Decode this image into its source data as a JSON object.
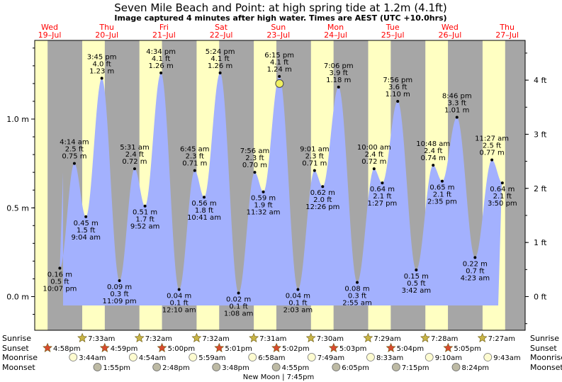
{
  "chart_data": {
    "type": "area",
    "title": "Seven Mile Beach and Point: at high  spring tide at 1.2m (4.1ft)",
    "subtitle": "Image captured 4 minutes after high water. Times are AEST (UTC +10.0hrs)",
    "days": [
      {
        "dow": "Wed",
        "date": "19–Jul"
      },
      {
        "dow": "Thu",
        "date": "20–Jul"
      },
      {
        "dow": "Fri",
        "date": "21–Jul"
      },
      {
        "dow": "Sat",
        "date": "22–Jul"
      },
      {
        "dow": "Sun",
        "date": "23–Jul"
      },
      {
        "dow": "Mon",
        "date": "24–Jul"
      },
      {
        "dow": "Tue",
        "date": "25–Jul"
      },
      {
        "dow": "Wed",
        "date": "26–Jul"
      },
      {
        "dow": "Thu",
        "date": "27–Jul"
      }
    ],
    "y_axis_left": {
      "unit": "m",
      "ticks": [
        "0.0 m",
        "0.5 m",
        "1.0 m"
      ],
      "tick_values": [
        0,
        0.5,
        1.0
      ],
      "ylim": [
        -0.15,
        1.45
      ]
    },
    "y_axis_right": {
      "unit": "ft",
      "ticks": [
        "0 ft",
        "1 ft",
        "2 ft",
        "3 ft",
        "4 ft"
      ],
      "tick_values": [
        0,
        1,
        2,
        3,
        4
      ]
    },
    "extremes": [
      {
        "day": 0,
        "time": "10:07 pm",
        "hour": 22.12,
        "m": 0.16,
        "m_label": "0.16 m",
        "ft_label": "0.5 ft",
        "kind": "low"
      },
      {
        "day": 1,
        "time": "4:14 am",
        "hour": 4.23,
        "m": 0.75,
        "m_label": "0.75 m",
        "ft_label": "2.5 ft",
        "kind": "high"
      },
      {
        "day": 1,
        "time": "9:04 am",
        "hour": 9.07,
        "m": 0.45,
        "m_label": "0.45 m",
        "ft_label": "1.5 ft",
        "kind": "low"
      },
      {
        "day": 1,
        "time": "3:45 pm",
        "hour": 15.75,
        "m": 1.23,
        "m_label": "1.23 m",
        "ft_label": "4.0 ft",
        "kind": "high"
      },
      {
        "day": 1,
        "time": "11:09 pm",
        "hour": 23.15,
        "m": 0.09,
        "m_label": "0.09 m",
        "ft_label": "0.3 ft",
        "kind": "low"
      },
      {
        "day": 2,
        "time": "5:31 am",
        "hour": 5.52,
        "m": 0.72,
        "m_label": "0.72 m",
        "ft_label": "2.4 ft",
        "kind": "high"
      },
      {
        "day": 2,
        "time": "9:52 am",
        "hour": 9.87,
        "m": 0.51,
        "m_label": "0.51 m",
        "ft_label": "1.7 ft",
        "kind": "low"
      },
      {
        "day": 2,
        "time": "4:34 pm",
        "hour": 16.57,
        "m": 1.26,
        "m_label": "1.26 m",
        "ft_label": "4.1 ft",
        "kind": "high"
      },
      {
        "day": 3,
        "time": "12:10 am",
        "hour": 0.17,
        "m": 0.04,
        "m_label": "0.04 m",
        "ft_label": "0.1 ft",
        "kind": "low"
      },
      {
        "day": 3,
        "time": "6:45 am",
        "hour": 6.75,
        "m": 0.71,
        "m_label": "0.71 m",
        "ft_label": "2.3 ft",
        "kind": "high"
      },
      {
        "day": 3,
        "time": "10:41 am",
        "hour": 10.68,
        "m": 0.56,
        "m_label": "0.56 m",
        "ft_label": "1.8 ft",
        "kind": "low"
      },
      {
        "day": 3,
        "time": "5:24 pm",
        "hour": 17.4,
        "m": 1.26,
        "m_label": "1.26 m",
        "ft_label": "4.1 ft",
        "kind": "high"
      },
      {
        "day": 4,
        "time": "1:08 am",
        "hour": 1.13,
        "m": 0.02,
        "m_label": "0.02 m",
        "ft_label": "0.1 ft",
        "kind": "low"
      },
      {
        "day": 4,
        "time": "7:56 am",
        "hour": 7.93,
        "m": 0.7,
        "m_label": "0.70 m",
        "ft_label": "2.3 ft",
        "kind": "high"
      },
      {
        "day": 4,
        "time": "11:32 am",
        "hour": 11.53,
        "m": 0.59,
        "m_label": "0.59 m",
        "ft_label": "1.9 ft",
        "kind": "low"
      },
      {
        "day": 4,
        "time": "6:15 pm",
        "hour": 18.25,
        "m": 1.24,
        "m_label": "1.24 m",
        "ft_label": "4.1 ft",
        "kind": "high"
      },
      {
        "day": 5,
        "time": "2:03 am",
        "hour": 2.05,
        "m": 0.04,
        "m_label": "0.04 m",
        "ft_label": "0.1 ft",
        "kind": "low"
      },
      {
        "day": 5,
        "time": "9:01 am",
        "hour": 9.02,
        "m": 0.71,
        "m_label": "0.71 m",
        "ft_label": "2.3 ft",
        "kind": "high"
      },
      {
        "day": 5,
        "time": "12:26 pm",
        "hour": 12.43,
        "m": 0.62,
        "m_label": "0.62 m",
        "ft_label": "2.0 ft",
        "kind": "low"
      },
      {
        "day": 5,
        "time": "7:06 pm",
        "hour": 19.1,
        "m": 1.18,
        "m_label": "1.18 m",
        "ft_label": "3.9 ft",
        "kind": "high"
      },
      {
        "day": 6,
        "time": "2:55 am",
        "hour": 2.92,
        "m": 0.08,
        "m_label": "0.08 m",
        "ft_label": "0.3 ft",
        "kind": "low"
      },
      {
        "day": 6,
        "time": "10:00 am",
        "hour": 10.0,
        "m": 0.72,
        "m_label": "0.72 m",
        "ft_label": "2.4 ft",
        "kind": "high"
      },
      {
        "day": 6,
        "time": "1:27 pm",
        "hour": 13.45,
        "m": 0.64,
        "m_label": "0.64 m",
        "ft_label": "2.1 ft",
        "kind": "low"
      },
      {
        "day": 6,
        "time": "7:56 pm",
        "hour": 19.93,
        "m": 1.1,
        "m_label": "1.10 m",
        "ft_label": "3.6 ft",
        "kind": "high"
      },
      {
        "day": 7,
        "time": "3:42 am",
        "hour": 3.7,
        "m": 0.15,
        "m_label": "0.15 m",
        "ft_label": "0.5 ft",
        "kind": "low"
      },
      {
        "day": 7,
        "time": "10:48 am",
        "hour": 10.8,
        "m": 0.74,
        "m_label": "0.74 m",
        "ft_label": "2.4 ft",
        "kind": "high"
      },
      {
        "day": 7,
        "time": "2:35 pm",
        "hour": 14.58,
        "m": 0.65,
        "m_label": "0.65 m",
        "ft_label": "2.1 ft",
        "kind": "low"
      },
      {
        "day": 7,
        "time": "8:46 pm",
        "hour": 20.77,
        "m": 1.01,
        "m_label": "1.01 m",
        "ft_label": "3.3 ft",
        "kind": "high"
      },
      {
        "day": 8,
        "time": "4:23 am",
        "hour": 4.38,
        "m": 0.22,
        "m_label": "0.22 m",
        "ft_label": "0.7 ft",
        "kind": "low"
      },
      {
        "day": 8,
        "time": "11:27 am",
        "hour": 11.45,
        "m": 0.77,
        "m_label": "0.77 m",
        "ft_label": "2.5 ft",
        "kind": "high"
      },
      {
        "day": 8,
        "time": "3:50 pm",
        "hour": 15.83,
        "m": 0.64,
        "m_label": "0.64 m",
        "ft_label": "2.1 ft",
        "kind": "low"
      }
    ],
    "current_marker": {
      "day": 4,
      "hour": 18.32,
      "m": 1.2
    },
    "night_shading": {
      "sunrise_hour": 7.53,
      "sunset_hour": 17.0
    },
    "sun_moon_labels": {
      "sunrise": "Sunrise",
      "sunset": "Sunset",
      "moonrise": "Moonrise",
      "moonset": "Moonset"
    },
    "sunrise": [
      {
        "day": 1,
        "time": "7:33am"
      },
      {
        "day": 2,
        "time": "7:32am"
      },
      {
        "day": 3,
        "time": "7:32am"
      },
      {
        "day": 4,
        "time": "7:31am"
      },
      {
        "day": 5,
        "time": "7:30am"
      },
      {
        "day": 6,
        "time": "7:29am"
      },
      {
        "day": 7,
        "time": "7:28am"
      },
      {
        "day": 8,
        "time": "7:27am"
      }
    ],
    "sunset": [
      {
        "day": 0,
        "time": "4:58pm"
      },
      {
        "day": 1,
        "time": "4:59pm"
      },
      {
        "day": 2,
        "time": "5:00pm"
      },
      {
        "day": 3,
        "time": "5:01pm"
      },
      {
        "day": 4,
        "time": "5:02pm"
      },
      {
        "day": 5,
        "time": "5:03pm"
      },
      {
        "day": 6,
        "time": "5:04pm"
      },
      {
        "day": 7,
        "time": "5:05pm"
      }
    ],
    "moonrise": [
      {
        "day": 1,
        "time": "3:44am"
      },
      {
        "day": 2,
        "time": "4:54am"
      },
      {
        "day": 3,
        "time": "5:59am"
      },
      {
        "day": 4,
        "time": "6:58am"
      },
      {
        "day": 5,
        "time": "7:49am"
      },
      {
        "day": 6,
        "time": "8:33am"
      },
      {
        "day": 7,
        "time": "9:10am"
      },
      {
        "day": 8,
        "time": "9:43am"
      }
    ],
    "moonset": [
      {
        "day": 1,
        "time": "1:55pm"
      },
      {
        "day": 2,
        "time": "2:48pm"
      },
      {
        "day": 3,
        "time": "3:48pm"
      },
      {
        "day": 4,
        "time": "4:55pm"
      },
      {
        "day": 5,
        "time": "6:05pm"
      },
      {
        "day": 6,
        "time": "7:15pm"
      },
      {
        "day": 7,
        "time": "8:24pm"
      }
    ],
    "moon_phase_note": "New Moon | 7:45pm",
    "colors": {
      "water": "#a3b1fe",
      "day": "#ffffc2",
      "night": "#a6a6a6",
      "day_label": "#ff0000",
      "sun": "#c8b446",
      "sunset": "#d84a2e"
    }
  }
}
